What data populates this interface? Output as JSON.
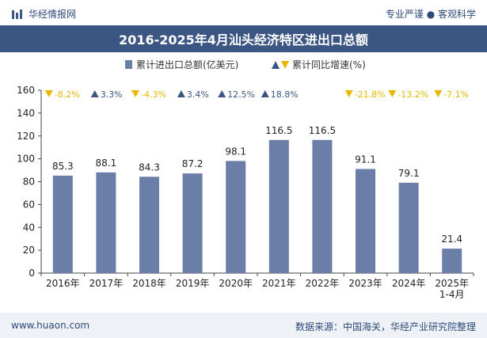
{
  "header": {
    "brand": "华经情报网",
    "tagline": "专业严谨 ● 客观科学"
  },
  "title": "2016-2025年4月汕头经济特区进出口总额",
  "footer": {
    "website": "www.huaon.com",
    "source": "数据来源：中国海关，华经产业研究院整理"
  },
  "colors": {
    "bar": "#6b7ea8",
    "up": "#3c5683",
    "down": "#e8b800",
    "title_bg": "#3c5683"
  },
  "chart_data": {
    "type": "bar",
    "categories": [
      "2016年",
      "2017年",
      "2018年",
      "2019年",
      "2020年",
      "2021年",
      "2022年",
      "2023年",
      "2024年",
      "2025年\n1-4月"
    ],
    "series": [
      {
        "name": "累计进出口总额(亿美元)",
        "values": [
          85.3,
          88.1,
          84.3,
          87.2,
          98.1,
          116.5,
          116.5,
          91.1,
          79.1,
          21.4
        ]
      }
    ],
    "growth": {
      "name": "累计同比增速(%)",
      "values": [
        -8.2,
        3.3,
        -4.3,
        3.4,
        12.5,
        18.8,
        null,
        -21.8,
        -13.2,
        -7.1
      ],
      "labels": [
        "-8.2%",
        "3.3%",
        "-4.3%",
        "3.4%",
        "12.5%",
        "18.8%",
        "",
        "-21.8%",
        "-13.2%",
        "-7.1%"
      ]
    },
    "value_labels": [
      "85.3",
      "88.1",
      "84.3",
      "87.2",
      "98.1",
      "116.5",
      "116.5",
      "91.1",
      "79.1",
      "21.4"
    ],
    "ylim": [
      0,
      160
    ],
    "yticks": [
      0,
      20,
      40,
      60,
      80,
      100,
      120,
      140,
      160
    ],
    "legend_position": "top"
  }
}
